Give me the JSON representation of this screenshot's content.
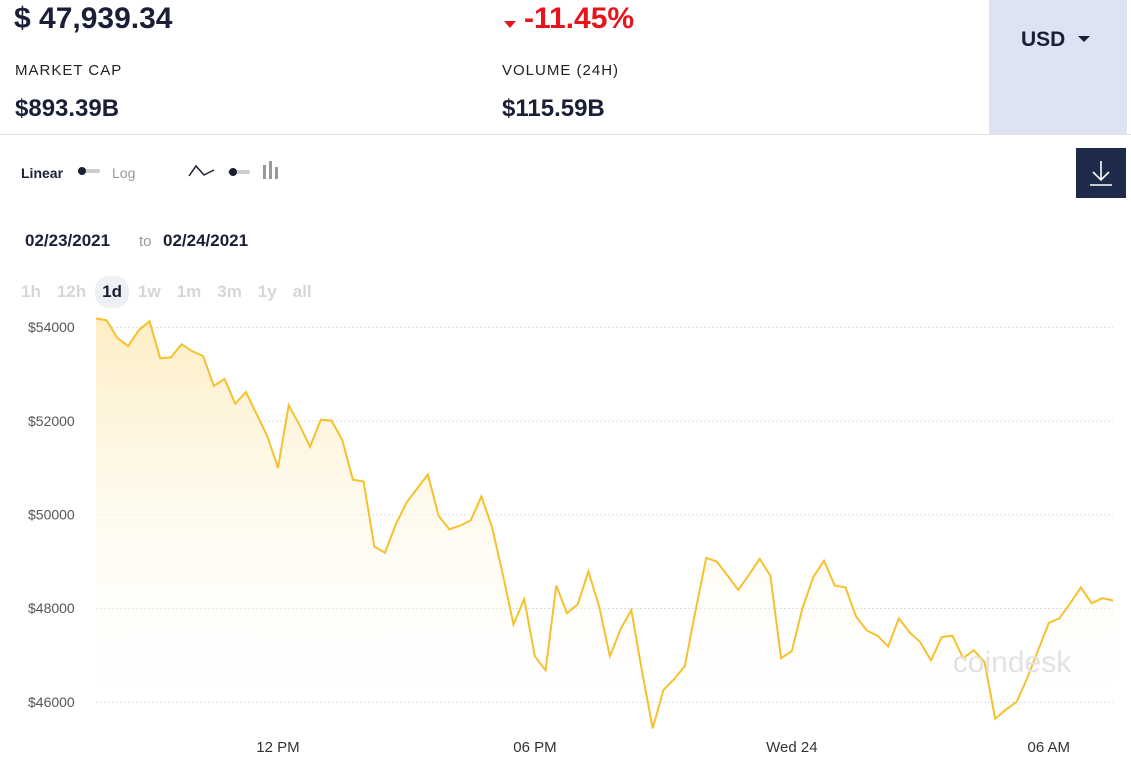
{
  "header": {
    "price": "$ 47,939.34",
    "change": "-11.45%",
    "market_cap_label": "MARKET CAP",
    "market_cap": "$893.39B",
    "volume_label": "VOLUME (24H)",
    "volume": "$115.59B",
    "currency": "USD"
  },
  "controls": {
    "linear": "Linear",
    "log": "Log",
    "date_from": "02/23/2021",
    "to": "to",
    "date_to": "02/24/2021",
    "ranges": [
      "1h",
      "12h",
      "1d",
      "1w",
      "1m",
      "3m",
      "1y",
      "all"
    ],
    "selected_range": 2
  },
  "watermark": "coindesk",
  "chart_data": {
    "type": "area",
    "color": "#f5c12e",
    "x": [
      7.75,
      8,
      8.25,
      8.5,
      8.75,
      9,
      9.25,
      9.5,
      9.75,
      10,
      10.25,
      10.5,
      10.75,
      11,
      11.25,
      11.5,
      11.75,
      12,
      12.25,
      12.5,
      12.75,
      13,
      13.25,
      13.5,
      13.75,
      14,
      14.25,
      14.5,
      14.75,
      15,
      15.25,
      15.5,
      15.75,
      16,
      16.25,
      16.5,
      16.75,
      17,
      17.25,
      17.5,
      17.75,
      18,
      18.25,
      18.5,
      18.75,
      19,
      19.25,
      19.5,
      19.75,
      20,
      20.25,
      20.5,
      20.75,
      21,
      21.25,
      21.5,
      21.75,
      22,
      22.25,
      22.5,
      22.75,
      23,
      23.25,
      23.5,
      23.75,
      24,
      24.25,
      24.5,
      24.75,
      25,
      25.25,
      25.5,
      25.75,
      26,
      26.25,
      26.5,
      26.75,
      27,
      27.25,
      27.5,
      27.75,
      28,
      28.25,
      28.5,
      28.75,
      29,
      29.25,
      29.5,
      29.75,
      30,
      30.25,
      30.5,
      30.75,
      31,
      31.25,
      31.5
    ],
    "values": [
      54190,
      54150,
      53770,
      53600,
      53940,
      54130,
      53340,
      53360,
      53640,
      53490,
      53390,
      52750,
      52900,
      52370,
      52620,
      52150,
      51680,
      51000,
      52340,
      51920,
      51450,
      52030,
      52010,
      51600,
      50750,
      50710,
      49320,
      49190,
      49790,
      50260,
      50560,
      50860,
      49980,
      49690,
      49770,
      49880,
      50390,
      49730,
      48730,
      47660,
      48200,
      46980,
      46680,
      48490,
      47900,
      48090,
      48790,
      48050,
      46980,
      47560,
      47970,
      46660,
      45440,
      46260,
      46490,
      46770,
      47950,
      49080,
      49000,
      48700,
      48400,
      48720,
      49060,
      48700,
      46940,
      47090,
      48010,
      48670,
      49020,
      48490,
      48450,
      47830,
      47530,
      47420,
      47190,
      47790,
      47490,
      47280,
      46890,
      47390,
      47420,
      46940,
      47110,
      46860,
      45650,
      45840,
      46010,
      46520,
      47110,
      47690,
      47790,
      48110,
      48450,
      48110,
      48220,
      48170
    ],
    "xlim": [
      7.75,
      31.5
    ],
    "ylim": [
      45300,
      54200
    ],
    "xticks": [
      {
        "value": 12,
        "label": "12 PM"
      },
      {
        "value": 18,
        "label": "06 PM"
      },
      {
        "value": 24,
        "label": "Wed 24"
      },
      {
        "value": 30,
        "label": "06 AM"
      }
    ],
    "yticks": [
      {
        "value": 46000,
        "label": "$46000"
      },
      {
        "value": 48000,
        "label": "$48000"
      },
      {
        "value": 50000,
        "label": "$50000"
      },
      {
        "value": 52000,
        "label": "$52000"
      },
      {
        "value": 54000,
        "label": "$54000"
      }
    ],
    "grid": true
  }
}
